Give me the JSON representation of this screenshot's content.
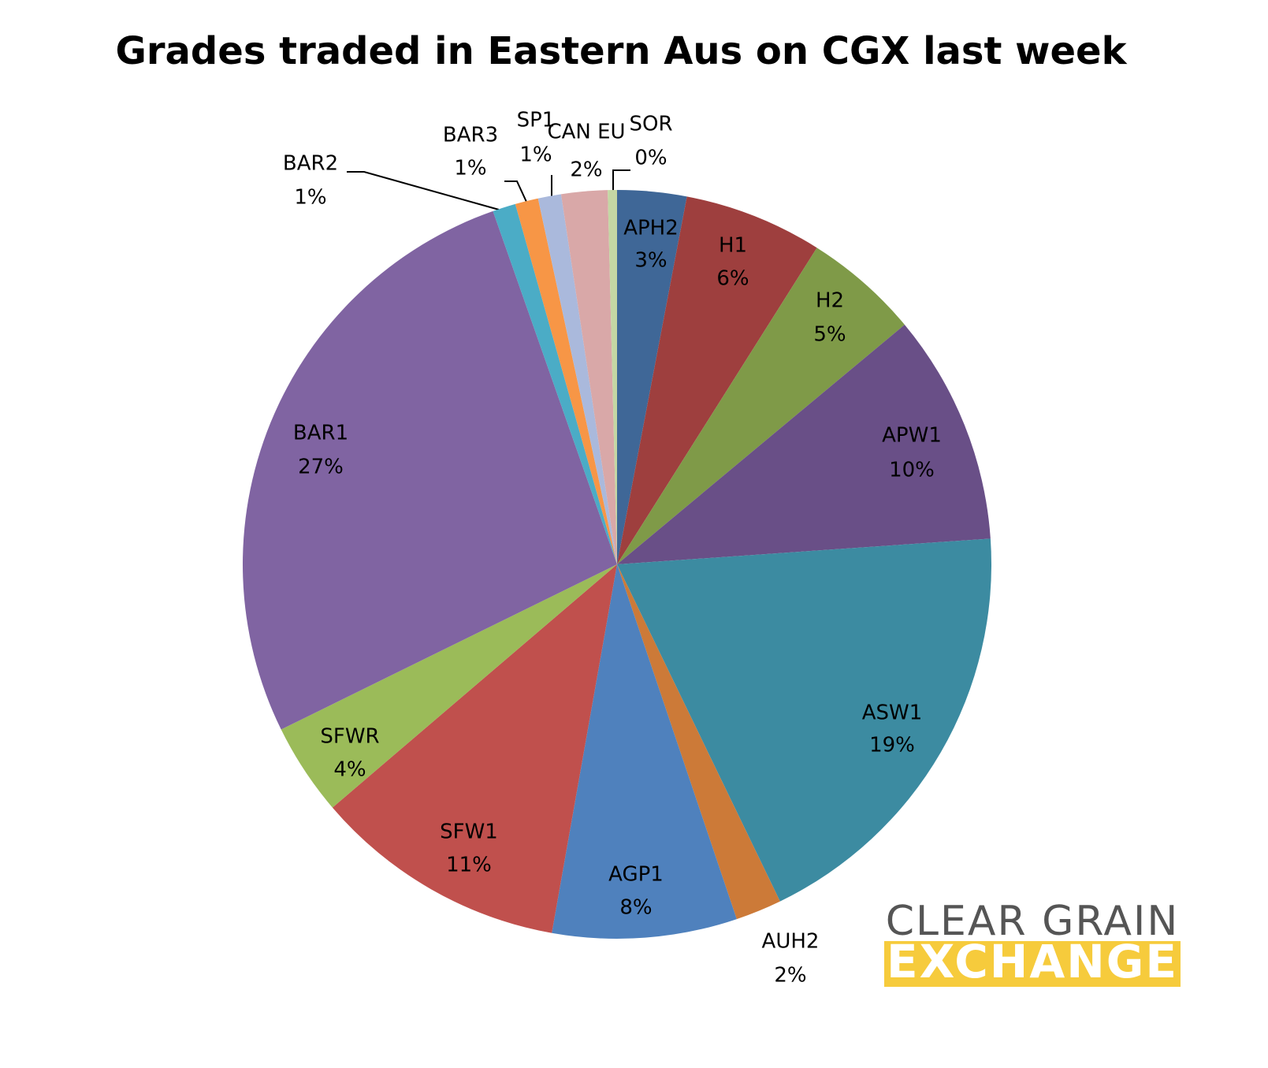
{
  "chart_data": {
    "type": "pie",
    "title": "Grades traded in Eastern Aus on CGX last week",
    "categories": [
      "APH2",
      "H1",
      "H2",
      "APW1",
      "ASW1",
      "AUH2",
      "AGP1",
      "SFW1",
      "SFWR",
      "BAR1",
      "BAR2",
      "BAR3",
      "SP1",
      "CAN EU",
      "SOR"
    ],
    "values": [
      3,
      6,
      5,
      10,
      19,
      2,
      8,
      11,
      4,
      27,
      1,
      1,
      1,
      2,
      0.4
    ],
    "value_labels": [
      "3%",
      "6%",
      "5%",
      "10%",
      "19%",
      "2%",
      "8%",
      "11%",
      "4%",
      "27%",
      "1%",
      "1%",
      "1%",
      "2%",
      "0%"
    ],
    "colors": [
      "#3f6797",
      "#9e3f3e",
      "#7f9a48",
      "#694f87",
      "#3c8ba1",
      "#cc7a38",
      "#4f81bd",
      "#c0504d",
      "#9bbb59",
      "#8064a2",
      "#4bacc6",
      "#f79646",
      "#aab9dc",
      "#d9a8a8",
      "#c4d7a4"
    ]
  },
  "logo": {
    "line1": "CLEAR GRAIN",
    "line2": "EXCHANGE"
  }
}
